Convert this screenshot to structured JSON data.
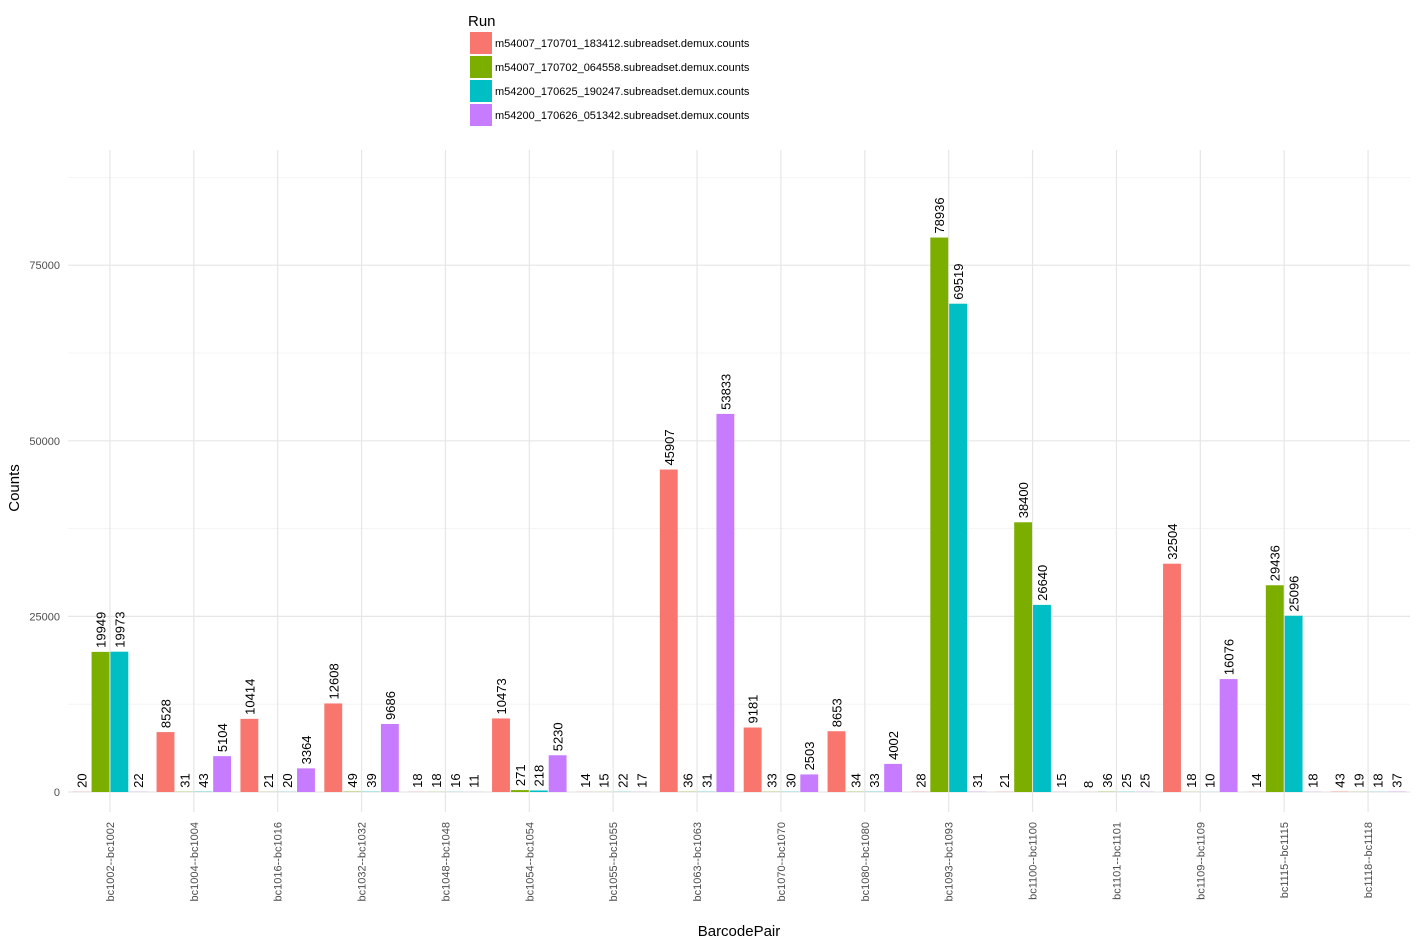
{
  "chart_data": {
    "type": "bar",
    "title": "",
    "xlabel": "BarcodePair",
    "ylabel": "Counts",
    "ylim": [
      -4000,
      88000
    ],
    "yticks": [
      0,
      25000,
      50000,
      75000
    ],
    "grid": true,
    "legend": {
      "title": "Run",
      "position": "top"
    },
    "categories": [
      "bc1002--bc1002",
      "bc1004--bc1004",
      "bc1016--bc1016",
      "bc1032--bc1032",
      "bc1048--bc1048",
      "bc1054--bc1054",
      "bc1055--bc1055",
      "bc1063--bc1063",
      "bc1070--bc1070",
      "bc1080--bc1080",
      "bc1093--bc1093",
      "bc1100--bc1100",
      "bc1101--bc1101",
      "bc1109--bc1109",
      "bc1115--bc1115",
      "bc1118--bc1118"
    ],
    "series": [
      {
        "name": "m54007_170701_183412.subreadset.demux.counts",
        "color": "#F8766D",
        "values": [
          20,
          8528,
          10414,
          12608,
          18,
          10473,
          14,
          45907,
          9181,
          8653,
          28,
          21,
          8,
          32504,
          14,
          43
        ]
      },
      {
        "name": "m54007_170702_064558.subreadset.demux.counts",
        "color": "#7CAE00",
        "values": [
          19949,
          31,
          21,
          49,
          18,
          271,
          15,
          36,
          33,
          34,
          78936,
          38400,
          36,
          18,
          29436,
          19
        ]
      },
      {
        "name": "m54200_170625_190247.subreadset.demux.counts",
        "color": "#00BFC4",
        "values": [
          19973,
          43,
          20,
          39,
          16,
          218,
          22,
          31,
          30,
          33,
          69519,
          26640,
          25,
          10,
          25096,
          18
        ]
      },
      {
        "name": "m54200_170626_051342.subreadset.demux.counts",
        "color": "#C77CFF",
        "values": [
          22,
          5104,
          3364,
          9686,
          11,
          5230,
          17,
          53833,
          2503,
          4002,
          31,
          15,
          25,
          16076,
          18,
          37
        ]
      }
    ]
  }
}
